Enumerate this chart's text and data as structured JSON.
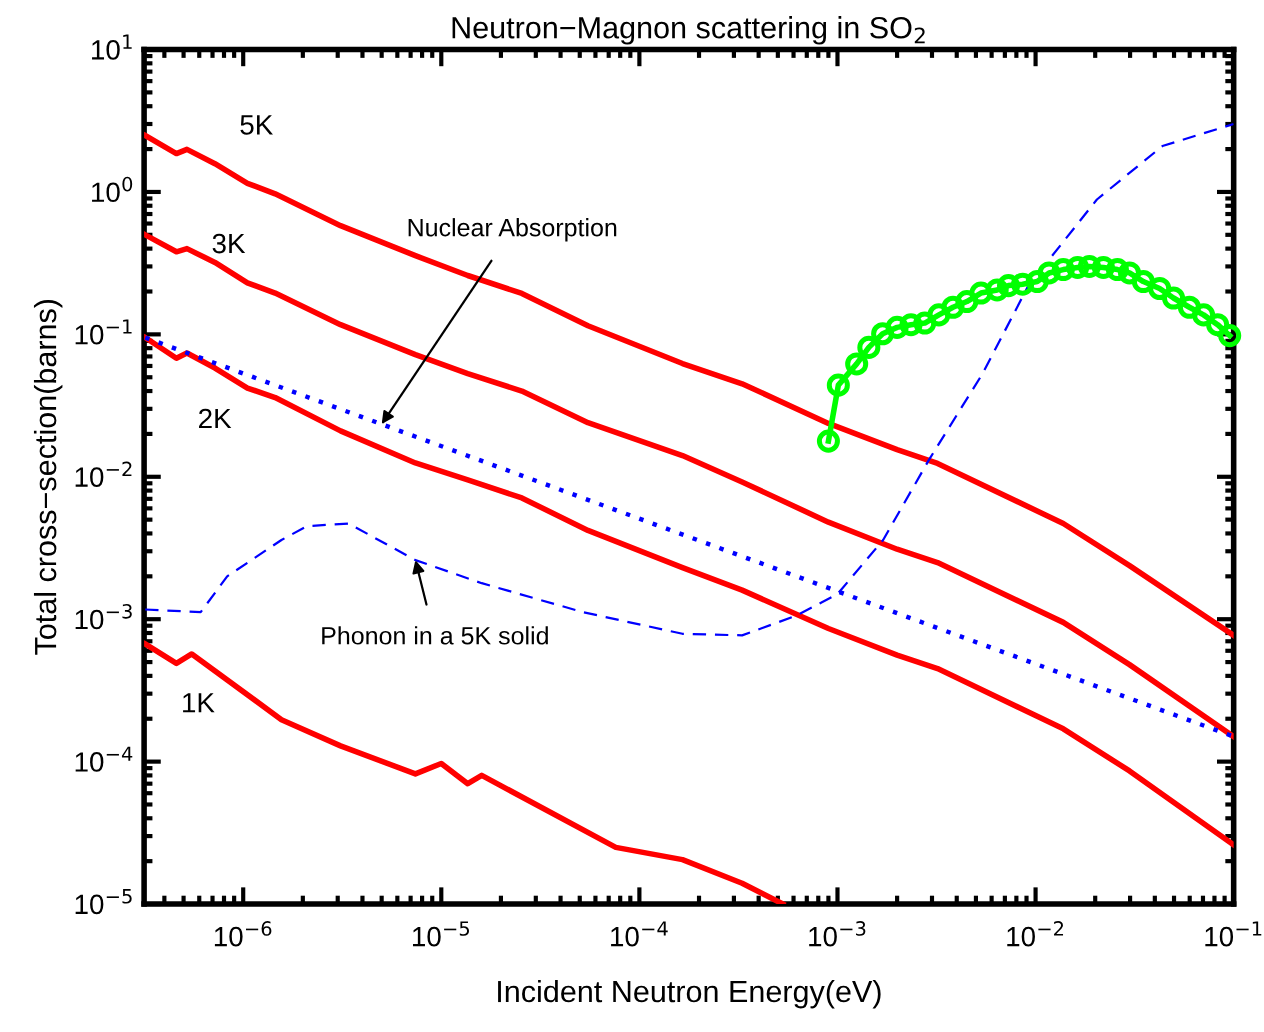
{
  "chart_data": {
    "type": "line",
    "title": "Neutron−Magnon scattering in SO$_{2}$",
    "xlabel": "Incident Neutron Energy(eV)",
    "ylabel": "Total cross−section(barns)",
    "log": "xy",
    "grid": false,
    "legend": false,
    "xlim": [
      3.16e-07,
      0.1
    ],
    "ylim": [
      1e-05,
      10
    ],
    "xticks": [
      {
        "value": 1e-06,
        "label": "10$^{−6}$"
      },
      {
        "value": 1e-05,
        "label": "10$^{−5}$"
      },
      {
        "value": 0.0001,
        "label": "10$^{−4}$"
      },
      {
        "value": 0.001,
        "label": "10$^{−3}$"
      },
      {
        "value": 0.01,
        "label": "10$^{−2}$"
      },
      {
        "value": 0.1,
        "label": "10$^{−1}$"
      }
    ],
    "yticks": [
      {
        "value": 1e-05,
        "label": "10$^{−5}$"
      },
      {
        "value": 0.0001,
        "label": "10$^{−4}$"
      },
      {
        "value": 0.001,
        "label": "10$^{−3}$"
      },
      {
        "value": 0.01,
        "label": "10$^{−2}$"
      },
      {
        "value": 0.1,
        "label": "10$^{−1}$"
      },
      {
        "value": 1,
        "label": "10$^{0}$"
      },
      {
        "value": 10,
        "label": "10$^{1}$"
      }
    ],
    "series": [
      {
        "name": "5K",
        "color": "#ff0000",
        "line_style": "solid",
        "marker": "none",
        "x": [
          3.2e-07,
          4.6e-07,
          5.2e-07,
          7.2e-07,
          1.05e-06,
          1.45e-06,
          3.1e-06,
          7.4e-06,
          1.36e-05,
          2.55e-05,
          5.5e-05,
          0.000165,
          0.00033,
          0.0009,
          0.002,
          0.0032,
          0.0138,
          0.0298,
          0.1
        ],
        "values": [
          2.49,
          1.86,
          1.99,
          1.58,
          1.15,
          0.97,
          0.58,
          0.357,
          0.259,
          0.194,
          0.115,
          0.0624,
          0.045,
          0.0237,
          0.0155,
          0.0124,
          0.0047,
          0.00238,
          0.00077
        ]
      },
      {
        "name": "3K",
        "color": "#ff0000",
        "line_style": "solid",
        "marker": "none",
        "x": [
          3.2e-07,
          4.6e-07,
          5.2e-07,
          7.2e-07,
          1.05e-06,
          1.45e-06,
          3.1e-06,
          7.4e-06,
          1.36e-05,
          2.55e-05,
          5.5e-05,
          0.000165,
          0.00033,
          0.0009,
          0.002,
          0.0032,
          0.0138,
          0.0298,
          0.1
        ],
        "values": [
          0.5,
          0.38,
          0.4,
          0.32,
          0.23,
          0.195,
          0.117,
          0.072,
          0.053,
          0.04,
          0.024,
          0.0141,
          0.0092,
          0.0048,
          0.0031,
          0.0025,
          0.00095,
          0.00048,
          0.00015
        ]
      },
      {
        "name": "2K",
        "color": "#ff0000",
        "line_style": "solid",
        "marker": "none",
        "x": [
          3.2e-07,
          4.6e-07,
          5.2e-07,
          7.2e-07,
          1.05e-06,
          1.45e-06,
          3.1e-06,
          7.4e-06,
          1.36e-05,
          2.55e-05,
          5.5e-05,
          0.000165,
          0.00033,
          0.0009,
          0.002,
          0.0032,
          0.0138,
          0.0298,
          0.1
        ],
        "values": [
          0.095,
          0.068,
          0.074,
          0.058,
          0.042,
          0.036,
          0.021,
          0.0125,
          0.0095,
          0.0071,
          0.0042,
          0.0023,
          0.0016,
          0.00086,
          0.00056,
          0.00045,
          0.00017,
          8.6e-05,
          2.6e-05
        ]
      },
      {
        "name": "1K",
        "color": "#ff0000",
        "line_style": "solid",
        "marker": "none",
        "x": [
          3.2e-07,
          4.6e-07,
          5.5e-07,
          1.56e-06,
          3.1e-06,
          7.4e-06,
          1e-05,
          1.36e-05,
          1.6e-05,
          7.6e-05,
          0.000165,
          0.00033,
          0.00053
        ],
        "values": [
          0.00067,
          0.00049,
          0.00057,
          0.000197,
          0.000129,
          8.2e-05,
          9.7e-05,
          7e-05,
          8e-05,
          2.5e-05,
          2.05e-05,
          1.4e-05,
          1e-05
        ]
      },
      {
        "color": "#0000ff",
        "line_style": "dotted",
        "marker": "none",
        "x": [
          3.2e-07,
          0.1
        ],
        "values": [
          0.095,
          0.00015
        ]
      },
      {
        "color": "#0000ff",
        "line_style": "dashed",
        "marker": "none",
        "x": [
          3.2e-07,
          6.1e-07,
          8.3e-07,
          1.56e-06,
          2.1e-06,
          3.4e-06,
          7.4e-06,
          1.6e-05,
          5.2e-05,
          0.000165,
          0.00033,
          0.00062,
          0.001,
          0.0017,
          0.0029,
          0.0054,
          0.0092,
          0.0204,
          0.0437,
          0.1
        ],
        "values": [
          0.00117,
          0.00112,
          0.002,
          0.0036,
          0.0045,
          0.0047,
          0.0026,
          0.00179,
          0.00112,
          0.00079,
          0.00077,
          0.00106,
          0.0015,
          0.0036,
          0.0132,
          0.053,
          0.22,
          0.885,
          2.1,
          3.0
        ]
      },
      {
        "color": "#00ff00",
        "line_style": "solid",
        "marker": "circle",
        "x": [
          0.0009,
          0.00101,
          0.00125,
          0.00144,
          0.00169,
          0.002,
          0.00235,
          0.00276,
          0.00325,
          0.00383,
          0.0045,
          0.0053,
          0.0064,
          0.0073,
          0.0086,
          0.0102,
          0.0117,
          0.0138,
          0.0163,
          0.0187,
          0.022,
          0.0259,
          0.0298,
          0.035,
          0.0423,
          0.0497,
          0.0598,
          0.0705,
          0.083,
          0.0955
        ],
        "values": [
          0.0178,
          0.044,
          0.062,
          0.081,
          0.101,
          0.112,
          0.117,
          0.12,
          0.137,
          0.155,
          0.17,
          0.195,
          0.205,
          0.22,
          0.225,
          0.235,
          0.27,
          0.285,
          0.295,
          0.3,
          0.295,
          0.285,
          0.27,
          0.235,
          0.21,
          0.18,
          0.155,
          0.137,
          0.117,
          0.098
        ]
      }
    ],
    "annotations": [
      {
        "text": "Nuclear Absorption",
        "x": 5e-06,
        "y": 0.0234
      },
      {
        "text": "Phonon in a 5K solid",
        "x": 7.4e-06,
        "y": 0.0026
      }
    ]
  }
}
